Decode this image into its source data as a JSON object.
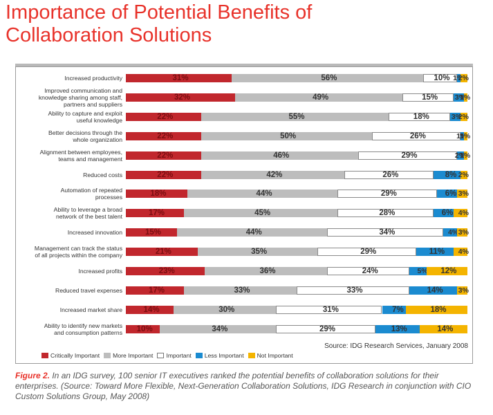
{
  "title_line1": "Importance of Potential Benefits of",
  "title_line2": "Collaboration Solutions",
  "source": "Source:  IDG Research Services, January  2008",
  "caption": {
    "figure_label": "Figure 2.",
    "text": " In an IDG survey, 100 senior IT executives ranked the potential benefits of collaboration solutions for their enterprises. (Source: Toward More Flexible, Next-Generation Collaboration Solutions, IDG Research in conjunction with CIO Custom Solutions Group, May 2008)"
  },
  "colors": {
    "critically": "#c1272d",
    "more": "#bdbdbd",
    "important": "#ffffff",
    "less": "#1b8bd0",
    "not": "#f4b400"
  },
  "chart_data": {
    "type": "bar",
    "orientation": "horizontal",
    "stacked": true,
    "unit": "%",
    "legend_placement": "bottom-left",
    "categories": [
      "Increased productivity",
      "Improved communication and knowledge sharing among staff, partners and suppliers",
      "Ability to capture and exploit useful knowledge",
      "Better decisions through the whole organization",
      "Alignment between employees, teams and management",
      "Reduced costs",
      "Automation of repeated processes",
      "Ability to leverage a broad network of the best talent",
      "Increased innovation",
      "Management can track the status of all projects within the company",
      "Increased profits",
      "Reduced travel expenses",
      "Increased market share",
      "Ability to identify new markets and consumption patterns"
    ],
    "label_lines": [
      [
        "Increased productivity"
      ],
      [
        "Improved communication and",
        "knowledge sharing among staff,",
        "partners and suppliers"
      ],
      [
        "Ability to capture and exploit",
        "useful knowledge"
      ],
      [
        "Better decisions through the",
        "whole organization"
      ],
      [
        "Alignment between employees,",
        "teams and management"
      ],
      [
        "Reduced costs"
      ],
      [
        "Automation of repeated",
        "processes"
      ],
      [
        "Ability to leverage a broad",
        "network of the best talent"
      ],
      [
        "Increased innovation"
      ],
      [
        "Management can track the status",
        "of all projects within the company"
      ],
      [
        "Increased profits"
      ],
      [
        "Reduced travel expenses"
      ],
      [
        "Increased market share"
      ],
      [
        "Ability to identify new markets",
        "and consumption patterns"
      ]
    ],
    "series": [
      {
        "name": "Critically Important",
        "values": [
          31,
          32,
          22,
          22,
          22,
          22,
          18,
          17,
          15,
          21,
          23,
          17,
          14,
          10
        ]
      },
      {
        "name": "More Important",
        "values": [
          56,
          49,
          55,
          50,
          46,
          42,
          44,
          45,
          44,
          35,
          36,
          33,
          30,
          34
        ]
      },
      {
        "name": "Important",
        "values": [
          10,
          15,
          18,
          26,
          29,
          26,
          29,
          28,
          34,
          29,
          24,
          33,
          31,
          29
        ]
      },
      {
        "name": "Less Important",
        "values": [
          1,
          3,
          3,
          1,
          2,
          8,
          6,
          6,
          4,
          11,
          5,
          14,
          7,
          13
        ]
      },
      {
        "name": "Not Important",
        "values": [
          2,
          1,
          2,
          1,
          1,
          2,
          3,
          4,
          3,
          4,
          12,
          3,
          18,
          14
        ]
      }
    ]
  }
}
